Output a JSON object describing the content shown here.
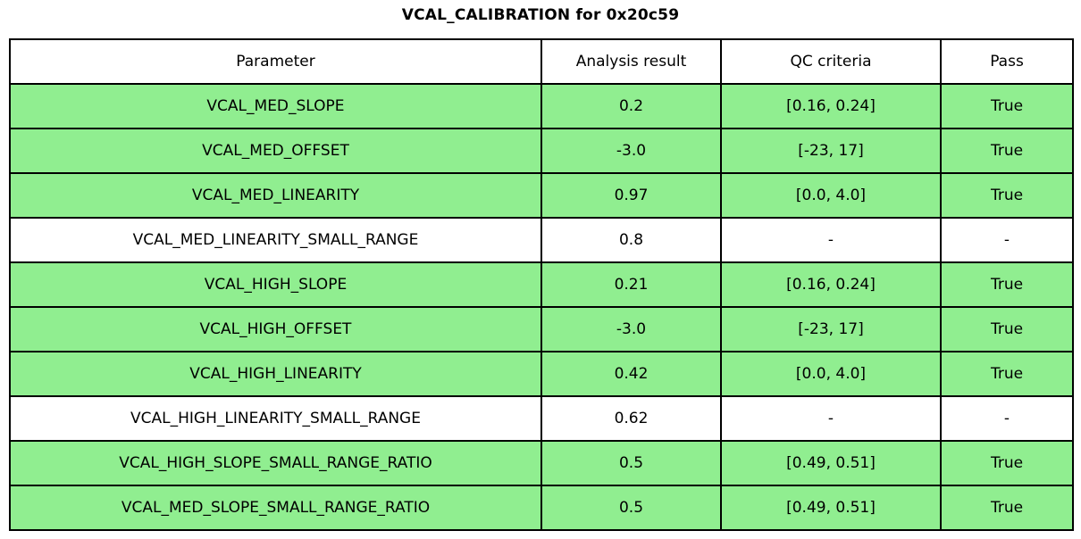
{
  "chart_data": {
    "type": "table",
    "title": "VCAL_CALIBRATION for 0x20c59",
    "columns": [
      "Parameter",
      "Analysis result",
      "QC criteria",
      "Pass"
    ],
    "rows": [
      {
        "parameter": "VCAL_MED_SLOPE",
        "result": "0.2",
        "criteria": "[0.16, 0.24]",
        "pass": "True"
      },
      {
        "parameter": "VCAL_MED_OFFSET",
        "result": "-3.0",
        "criteria": "[-23, 17]",
        "pass": "True"
      },
      {
        "parameter": "VCAL_MED_LINEARITY",
        "result": "0.97",
        "criteria": "[0.0, 4.0]",
        "pass": "True"
      },
      {
        "parameter": "VCAL_MED_LINEARITY_SMALL_RANGE",
        "result": "0.8",
        "criteria": "-",
        "pass": "-"
      },
      {
        "parameter": "VCAL_HIGH_SLOPE",
        "result": "0.21",
        "criteria": "[0.16, 0.24]",
        "pass": "True"
      },
      {
        "parameter": "VCAL_HIGH_OFFSET",
        "result": "-3.0",
        "criteria": "[-23, 17]",
        "pass": "True"
      },
      {
        "parameter": "VCAL_HIGH_LINEARITY",
        "result": "0.42",
        "criteria": "[0.0, 4.0]",
        "pass": "True"
      },
      {
        "parameter": "VCAL_HIGH_LINEARITY_SMALL_RANGE",
        "result": "0.62",
        "criteria": "-",
        "pass": "-"
      },
      {
        "parameter": "VCAL_HIGH_SLOPE_SMALL_RANGE_RATIO",
        "result": "0.5",
        "criteria": "[0.49, 0.51]",
        "pass": "True"
      },
      {
        "parameter": "VCAL_MED_SLOPE_SMALL_RANGE_RATIO",
        "result": "0.5",
        "criteria": "[0.49, 0.51]",
        "pass": "True"
      }
    ],
    "layout": {
      "grid": "on",
      "legend": "none",
      "pass_value": "True"
    },
    "colors": {
      "pass_row_bg": "#90EE90",
      "neutral_row_bg": "#FFFFFF",
      "border": "#000000",
      "text": "#000000"
    }
  }
}
